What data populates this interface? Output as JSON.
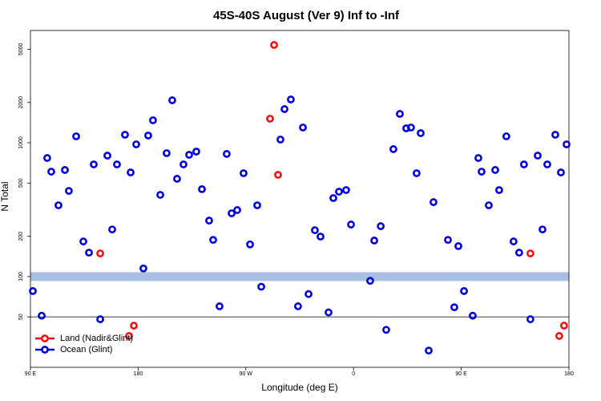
{
  "chart_data": {
    "type": "scatter",
    "title": "45S-40S August (Ver 9)   Inf to -Inf",
    "x_label": "Longitude (deg E)",
    "y_label": "N Total",
    "xlim": [
      90,
      540
    ],
    "xticks": [
      {
        "value": 90,
        "label": "90 E"
      },
      180,
      {
        "value": 270,
        "label": "90 W"
      },
      {
        "value": 360,
        "label": "0"
      },
      {
        "value": 450,
        "label": "90 E"
      },
      {
        "value": 540,
        "label": "180"
      }
    ],
    "ylim": [
      21,
      6900
    ],
    "yticks": [
      50,
      100,
      200,
      500,
      1000,
      2000,
      5000
    ],
    "log_y": true,
    "reference_band": 100,
    "reference_line": 50,
    "legend": "bottom-left",
    "series": [
      {
        "name": "Land (Nadir&Glint)",
        "color": "#ee1111",
        "x": [
          148.3,
          172.4,
          176.4,
          290.2,
          293.6,
          296.9,
          507.8,
          531.9,
          535.9
        ],
        "values": [
          149,
          36,
          43,
          1513,
          5377,
          576,
          149,
          36,
          43
        ]
      },
      {
        "name": "Ocean (Glint)",
        "color": "#0000dd",
        "x": [
          92,
          99.4,
          104,
          107.4,
          113.4,
          118.8,
          122.1,
          128.2,
          134.2,
          138.9,
          142.9,
          148.3,
          154.3,
          158.3,
          162.3,
          169,
          173.7,
          178.4,
          184.4,
          188.4,
          192.4,
          198.5,
          203.8,
          208.5,
          212.5,
          217.9,
          222.6,
          228.6,
          233.3,
          239.3,
          242.7,
          248,
          254,
          258.1,
          262.8,
          268.1,
          273.5,
          279.5,
          282.9,
          298.9,
          302.3,
          307.6,
          313.6,
          317.7,
          322.4,
          327.7,
          332.4,
          339.1,
          343.1,
          347.8,
          353.8,
          357.9,
          373.9,
          377.3,
          382.7,
          387.3,
          393.3,
          398.7,
          404,
          408,
          412.7,
          416.1,
          422.8,
          426.8,
          438.9,
          444.2,
          447.6,
          452.3,
          459.6,
          464.3,
          467,
          473,
          478.4,
          481.7,
          487.7,
          493.7,
          498.4,
          502.4,
          507.8,
          513.9,
          517.9,
          521.9,
          528.6,
          533.3,
          538
        ],
        "values": [
          78,
          51,
          769,
          608,
          341,
          626,
          437,
          1117,
          183,
          151,
          689,
          48,
          802,
          225,
          689,
          1148,
          600,
          973,
          115,
          1132,
          1472,
          408,
          836,
          2076,
          538,
          689,
          813,
          859,
          450,
          262,
          188,
          60,
          825,
          297,
          314,
          592,
          174,
          341,
          84,
          1057,
          1784,
          2105,
          60,
          1300,
          74,
          222,
          199,
          54,
          386,
          431,
          443,
          245,
          93,
          186,
          238,
          40,
          896,
          1643,
          1282,
          1300,
          592,
          1180,
          28,
          360,
          188,
          59,
          169,
          78,
          51,
          769,
          608,
          341,
          626,
          443,
          1117,
          183,
          151,
          689,
          48,
          802,
          225,
          689,
          1148,
          600,
          973
        ]
      }
    ]
  }
}
